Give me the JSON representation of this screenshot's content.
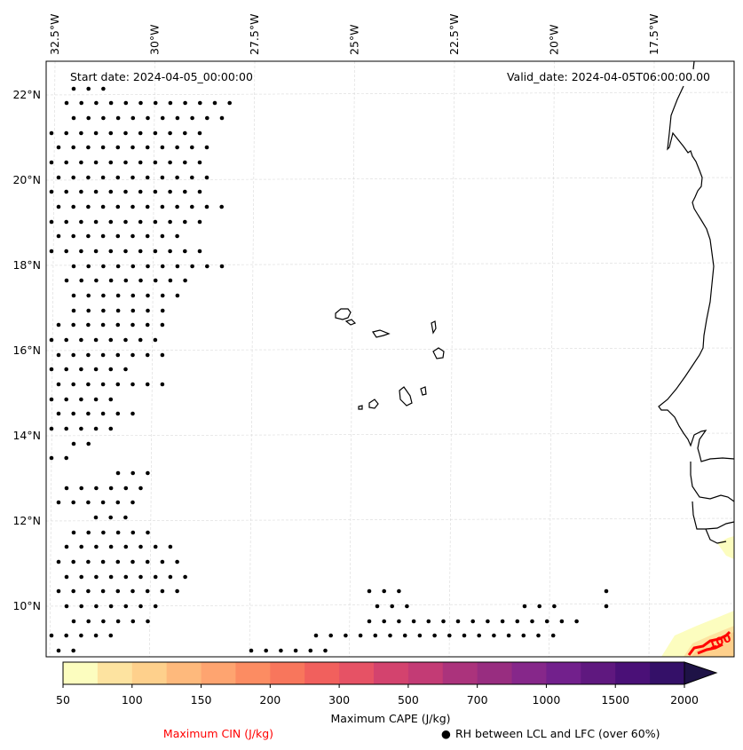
{
  "map": {
    "start_date_label": "Start date: 2024-04-05_00:00:00",
    "valid_date_label": "Valid_date: 2024-04-05T06:00:00.00",
    "longitude_labels": [
      "32.5°W",
      "30°W",
      "27.5°W",
      "25°W",
      "22.5°W",
      "20°W",
      "17.5°W"
    ],
    "latitude_labels": [
      "22°N",
      "20°N",
      "18°N",
      "16°N",
      "14°N",
      "12°N",
      "10°N"
    ],
    "longitude_values": [
      -32.5,
      -30,
      -27.5,
      -25,
      -22.5,
      -20,
      -17.5
    ],
    "latitude_values": [
      22,
      20,
      18,
      16,
      14,
      12,
      10
    ],
    "extent": {
      "lon_min": -33.0,
      "lon_max": -15.5,
      "lat_min": 8.9,
      "lat_max": 22.7
    },
    "gridline_color": "#d9d9d9",
    "coastline_color": "#000000",
    "cin_contour_color": "#ff0000",
    "cin_contour_label": "100"
  },
  "colorbar": {
    "title": "Maximum CAPE (J/kg)",
    "boundaries": [
      50,
      75,
      100,
      125,
      150,
      175,
      200,
      250,
      300,
      400,
      500,
      600,
      700,
      850,
      1000,
      1250,
      1500,
      1750,
      2000
    ],
    "tick_labels": [
      "50",
      "100",
      "150",
      "200",
      "300",
      "500",
      "700",
      "1000",
      "1500",
      "2000"
    ],
    "colors": [
      "#fcfdbf",
      "#fde3a0",
      "#fed08c",
      "#feb97c",
      "#fea470",
      "#fc8c62",
      "#f8765c",
      "#f1605d",
      "#e65265",
      "#d3436e",
      "#c33b75",
      "#ab337c",
      "#982d80",
      "#86278a",
      "#72208c",
      "#5f187f",
      "#4a1077",
      "#341068"
    ],
    "extend_color": "#1e1246",
    "extend": "max"
  },
  "legend": {
    "cin_label": "Maximum CIN (J/kg)",
    "cin_color": "#ff0000",
    "rh_marker": "●",
    "rh_label": "RH between LCL and LFC (over 60%)"
  }
}
